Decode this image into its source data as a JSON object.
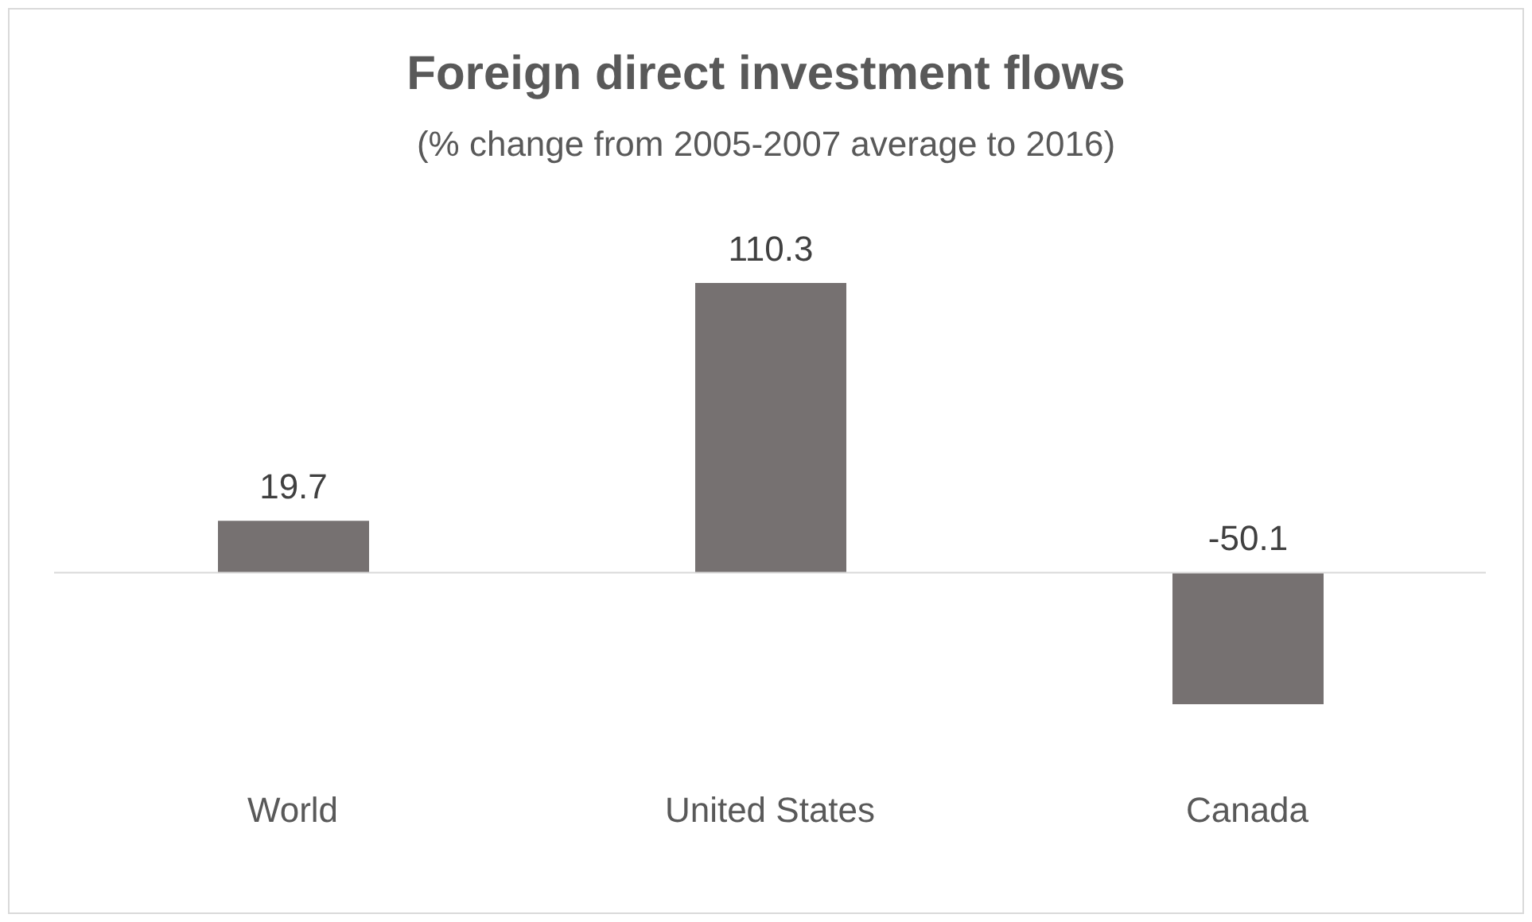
{
  "chart_data": {
    "type": "bar",
    "title": "Foreign direct investment flows",
    "subtitle": "(% change from 2005-2007 average to 2016)",
    "categories": [
      "World",
      "United States",
      "Canada"
    ],
    "values": [
      19.7,
      110.3,
      -50.1
    ],
    "color": "#767171",
    "data_labels": true
  }
}
